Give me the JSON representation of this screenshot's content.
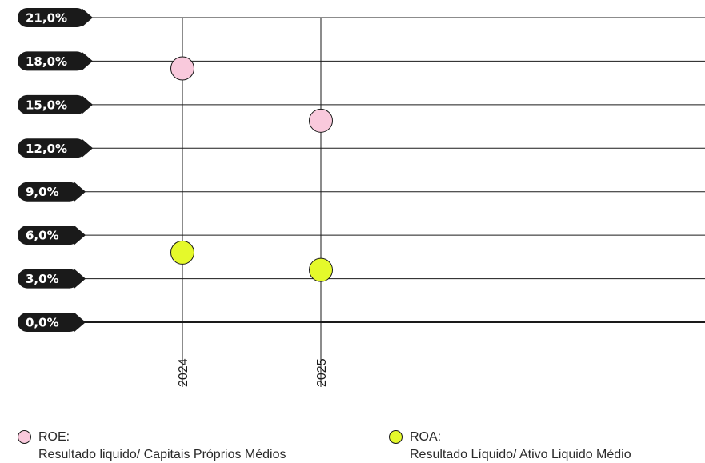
{
  "chart_data": {
    "type": "scatter",
    "title": "",
    "xlabel": "",
    "ylabel": "",
    "categories": [
      "2024",
      "2025"
    ],
    "ylim": [
      0,
      21
    ],
    "yticks": [
      0,
      3,
      6,
      9,
      12,
      15,
      18,
      21
    ],
    "ytick_labels": [
      "0,0%",
      "3,0%",
      "6,0%",
      "9,0%",
      "12,0%",
      "15,0%",
      "18,0%",
      "21,0%"
    ],
    "grid": true,
    "legend_position": "bottom",
    "series": [
      {
        "name": "ROE:",
        "description": "Resultado liquido/ Capitais Próprios Médios",
        "values": [
          17.5,
          13.9
        ],
        "color": "#f9c9dc"
      },
      {
        "name": "ROA:",
        "description": "Resultado Líquido/ Ativo Liquido Médio",
        "values": [
          4.8,
          3.6
        ],
        "color": "#e5f92b"
      }
    ],
    "colors": {
      "tick_label_bg": "#1a1a1a",
      "tick_label_text": "#ffffff",
      "gridline": "#1a1a1a"
    }
  }
}
